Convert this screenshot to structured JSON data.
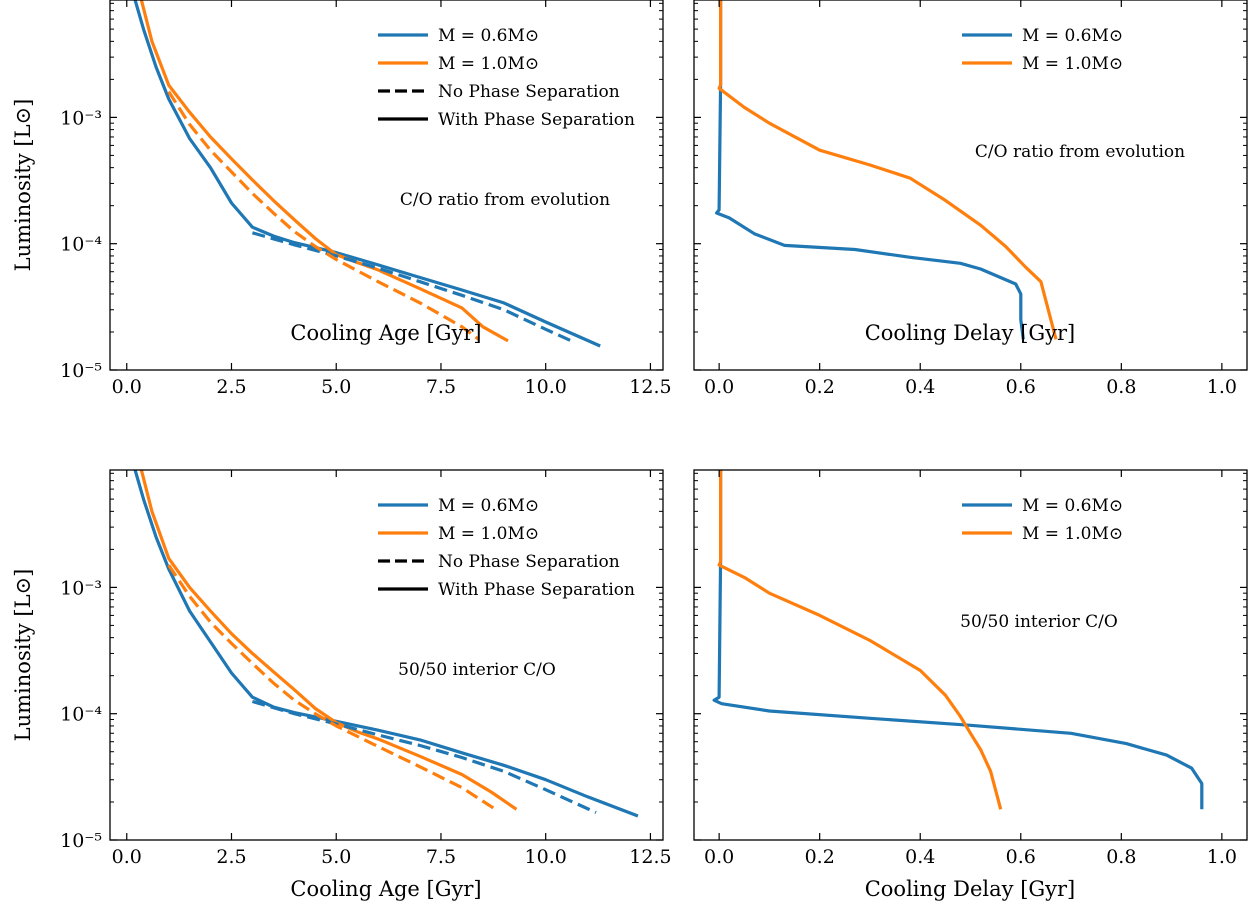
{
  "figure": {
    "colors": {
      "m06": "#1f77b4",
      "m10": "#ff7f0e",
      "black": "#000000"
    }
  },
  "chart_data": [
    {
      "type": "line",
      "xlabel": "Cooling Age [Gyr]",
      "ylabel": "Luminosity [L⊙]",
      "xlim": [
        -0.4,
        12.8
      ],
      "ylim": [
        1e-05,
        0.0085
      ],
      "yscale": "log",
      "xticks": [
        "0.0",
        "2.5",
        "5.0",
        "7.5",
        "10.0",
        "12.5"
      ],
      "yticks": [
        "10⁻⁵",
        "10⁻⁴",
        "10⁻³"
      ],
      "annotation": "C/O ratio from evolution",
      "legend": {
        "position": "top-right",
        "entries": [
          "M = 0.6M⊙",
          "M = 1.0M⊙",
          "No Phase Separation",
          "With Phase Separation"
        ]
      },
      "series": [
        {
          "name": "M = 0.6M⊙",
          "style": "solid",
          "color": "#1f77b4",
          "x": [
            0.2,
            0.4,
            0.7,
            1.0,
            1.5,
            2.0,
            2.5,
            3.0,
            3.5,
            4.0,
            5.0,
            6.0,
            7.0,
            8.0,
            9.0,
            10.0,
            11.3
          ],
          "y": [
            0.0085,
            0.005,
            0.0025,
            0.0014,
            0.00068,
            0.0004,
            0.00021,
            0.000135,
            0.000115,
            0.000102,
            8.5e-05,
            6.8e-05,
            5.4e-05,
            4.3e-05,
            3.4e-05,
            2.4e-05,
            1.55e-05
          ]
        },
        {
          "name": "M = 1.0M⊙",
          "style": "solid",
          "color": "#ff7f0e",
          "x": [
            0.35,
            0.6,
            1.0,
            1.5,
            2.0,
            2.5,
            3.0,
            3.5,
            4.0,
            4.5,
            5.0,
            5.5,
            6.0,
            7.0,
            8.0,
            8.5,
            9.1
          ],
          "y": [
            0.0085,
            0.004,
            0.0018,
            0.0011,
            0.0007,
            0.00047,
            0.00032,
            0.00022,
            0.000155,
            0.00011,
            8.2e-05,
            7.1e-05,
            6.2e-05,
            4.4e-05,
            3.1e-05,
            2.2e-05,
            1.7e-05
          ]
        },
        {
          "name": "",
          "style": "dashed",
          "color": "#1f77b4",
          "x": [
            3.0,
            4.0,
            5.0,
            6.0,
            7.0,
            8.0,
            9.0,
            10.0,
            10.7
          ],
          "y": [
            0.000122,
            9.8e-05,
            8e-05,
            6.4e-05,
            5e-05,
            3.9e-05,
            3e-05,
            2.1e-05,
            1.65e-05
          ]
        },
        {
          "name": "",
          "style": "dashed",
          "color": "#ff7f0e",
          "x": [
            1.0,
            1.5,
            2.0,
            2.5,
            3.0,
            3.5,
            4.0,
            4.5,
            5.0,
            6.0,
            7.0,
            8.0,
            8.4
          ],
          "y": [
            0.0016,
            0.00088,
            0.00055,
            0.00037,
            0.00025,
            0.000175,
            0.000125,
            9.5e-05,
            7.5e-05,
            5e-05,
            3.4e-05,
            2.2e-05,
            1.75e-05
          ]
        }
      ]
    },
    {
      "type": "line",
      "xlabel": "Cooling Delay [Gyr]",
      "ylabel": "",
      "xlim": [
        -0.05,
        1.05
      ],
      "ylim": [
        1e-05,
        0.0085
      ],
      "yscale": "log",
      "xticks": [
        "0.0",
        "0.2",
        "0.4",
        "0.6",
        "0.8",
        "1.0"
      ],
      "annotation": "C/O ratio from evolution",
      "legend": {
        "position": "top-right",
        "entries": [
          "M = 0.6M⊙",
          "M = 1.0M⊙"
        ]
      },
      "series": [
        {
          "name": "M = 0.6M⊙",
          "style": "solid",
          "color": "#1f77b4",
          "x": [
            0.003,
            0.003,
            0.0,
            -0.005,
            0.02,
            0.07,
            0.13,
            0.27,
            0.38,
            0.48,
            0.52,
            0.59,
            0.6,
            0.6,
            0.605
          ],
          "y": [
            0.0085,
            0.0019,
            0.000185,
            0.000175,
            0.00016,
            0.00012,
            9.7e-05,
            9e-05,
            7.8e-05,
            7e-05,
            6.3e-05,
            4.8e-05,
            4e-05,
            2.5e-05,
            1.75e-05
          ]
        },
        {
          "name": "M = 1.0M⊙",
          "style": "solid",
          "color": "#ff7f0e",
          "x": [
            0.003,
            0.003,
            0.0,
            0.05,
            0.1,
            0.2,
            0.3,
            0.38,
            0.45,
            0.52,
            0.57,
            0.61,
            0.64,
            0.67
          ],
          "y": [
            0.0085,
            0.0018,
            0.0017,
            0.0012,
            0.0009,
            0.00055,
            0.00042,
            0.00033,
            0.00022,
            0.00014,
            9.5e-05,
            6.5e-05,
            5e-05,
            1.75e-05
          ]
        }
      ]
    },
    {
      "type": "line",
      "xlabel": "Cooling Age [Gyr]",
      "ylabel": "Luminosity [L⊙]",
      "xlim": [
        -0.4,
        12.8
      ],
      "ylim": [
        1e-05,
        0.0085
      ],
      "yscale": "log",
      "xticks": [
        "0.0",
        "2.5",
        "5.0",
        "7.5",
        "10.0",
        "12.5"
      ],
      "yticks": [
        "10⁻⁵",
        "10⁻⁴",
        "10⁻³"
      ],
      "annotation": "50/50 interior C/O",
      "legend": {
        "position": "top-right",
        "entries": [
          "M = 0.6M⊙",
          "M = 1.0M⊙",
          "No Phase Separation",
          "With Phase Separation"
        ]
      },
      "series": [
        {
          "name": "M = 0.6M⊙",
          "style": "solid",
          "color": "#1f77b4",
          "x": [
            0.2,
            0.4,
            0.7,
            1.0,
            1.5,
            2.0,
            2.5,
            3.0,
            3.5,
            4.0,
            5.0,
            6.0,
            7.0,
            8.0,
            9.0,
            10.0,
            11.0,
            12.2
          ],
          "y": [
            0.0085,
            0.005,
            0.0025,
            0.0014,
            0.00065,
            0.00037,
            0.00021,
            0.000135,
            0.000113,
            0.000102,
            8.7e-05,
            7.4e-05,
            6.2e-05,
            4.9e-05,
            3.9e-05,
            3e-05,
            2.2e-05,
            1.55e-05
          ]
        },
        {
          "name": "M = 1.0M⊙",
          "style": "solid",
          "color": "#ff7f0e",
          "x": [
            0.35,
            0.6,
            1.0,
            1.5,
            2.0,
            2.5,
            3.0,
            3.5,
            4.0,
            4.5,
            5.0,
            5.5,
            6.0,
            7.0,
            8.0,
            8.7,
            9.3
          ],
          "y": [
            0.0085,
            0.004,
            0.0017,
            0.001,
            0.00065,
            0.00043,
            0.0003,
            0.000215,
            0.000155,
            0.00011,
            8.5e-05,
            7.2e-05,
            6.3e-05,
            4.6e-05,
            3.3e-05,
            2.4e-05,
            1.75e-05
          ]
        },
        {
          "name": "",
          "style": "dashed",
          "color": "#1f77b4",
          "x": [
            3.0,
            4.0,
            5.0,
            6.0,
            7.0,
            8.0,
            9.0,
            10.0,
            11.2
          ],
          "y": [
            0.000125,
            0.0001,
            8.3e-05,
            6.8e-05,
            5.6e-05,
            4.5e-05,
            3.5e-05,
            2.5e-05,
            1.65e-05
          ]
        },
        {
          "name": "",
          "style": "dashed",
          "color": "#ff7f0e",
          "x": [
            1.0,
            1.5,
            2.0,
            2.5,
            3.0,
            3.5,
            4.0,
            4.5,
            5.0,
            6.0,
            7.0,
            8.0,
            8.8
          ],
          "y": [
            0.0015,
            0.00085,
            0.00053,
            0.00036,
            0.00025,
            0.000175,
            0.000128,
            0.0001,
            8e-05,
            5.5e-05,
            3.8e-05,
            2.6e-05,
            1.75e-05
          ]
        }
      ]
    },
    {
      "type": "line",
      "xlabel": "Cooling Delay [Gyr]",
      "ylabel": "",
      "xlim": [
        -0.05,
        1.05
      ],
      "ylim": [
        1e-05,
        0.0085
      ],
      "yscale": "log",
      "xticks": [
        "0.0",
        "0.2",
        "0.4",
        "0.6",
        "0.8",
        "1.0"
      ],
      "annotation": "50/50 interior C/O",
      "legend": {
        "position": "top-right",
        "entries": [
          "M = 0.6M⊙",
          "M = 1.0M⊙"
        ]
      },
      "series": [
        {
          "name": "M = 0.6M⊙",
          "style": "solid",
          "color": "#1f77b4",
          "x": [
            0.003,
            0.003,
            0.0,
            -0.01,
            0.005,
            0.1,
            0.3,
            0.5,
            0.7,
            0.81,
            0.89,
            0.94,
            0.96,
            0.96
          ],
          "y": [
            0.0085,
            0.0017,
            0.000135,
            0.000128,
            0.00012,
            0.000105,
            9.2e-05,
            8.1e-05,
            7e-05,
            5.8e-05,
            4.7e-05,
            3.7e-05,
            2.8e-05,
            1.75e-05
          ]
        },
        {
          "name": "M = 1.0M⊙",
          "style": "solid",
          "color": "#ff7f0e",
          "x": [
            0.003,
            0.003,
            0.0,
            0.05,
            0.1,
            0.2,
            0.3,
            0.4,
            0.45,
            0.48,
            0.5,
            0.52,
            0.54,
            0.56
          ],
          "y": [
            0.0085,
            0.0016,
            0.0015,
            0.0012,
            0.0009,
            0.0006,
            0.00038,
            0.00022,
            0.00014,
            9.5e-05,
            7e-05,
            5.2e-05,
            3.5e-05,
            1.75e-05
          ]
        }
      ]
    }
  ]
}
